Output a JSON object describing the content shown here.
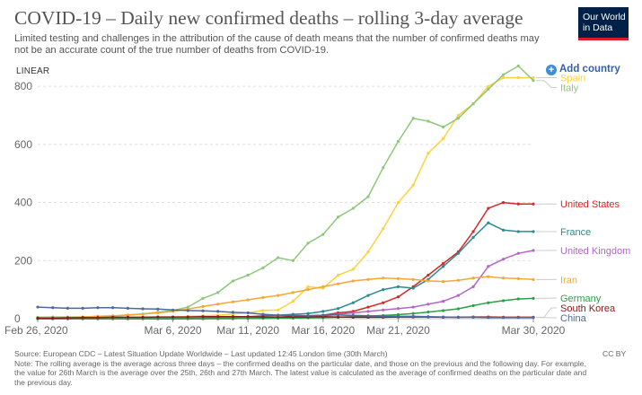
{
  "header": {
    "title": "COVID-19 – Daily new confirmed deaths – rolling 3-day average",
    "subtitle": "Limited testing and challenges in the attribution of the cause of death means that the number of confirmed deaths may not be an accurate count of the true number of deaths from COVID-19."
  },
  "logo": {
    "line1": "Our World",
    "line2": "in Data",
    "bg": "#002147",
    "accent": "#dd1a27"
  },
  "controls": {
    "scale_label": "LINEAR",
    "add_country_label": "Add country",
    "add_icon": "plus-circle-icon"
  },
  "footer": {
    "source": "Source: European CDC – Latest Situation Update Worldwide – Last updated 12:45 London time (30th March)",
    "note": "Note: The rolling average is the average across three days – the confirmed deaths on the particular date, and those on the previous and the following day. For example, the value for 26th March is the average over the 25th, 26th and 27th March. The latest value is calculated as the average of confirmed deaths on the particular date and the previous day.",
    "license": "CC BY"
  },
  "chart_data": {
    "type": "line",
    "ylim": [
      0,
      850
    ],
    "yticks": [
      "0",
      "200",
      "400",
      "600",
      "800"
    ],
    "ytick_values": [
      0,
      200,
      400,
      600,
      800
    ],
    "xticks": [
      "Feb 26, 2020",
      "Mar 6, 2020",
      "Mar 11, 2020",
      "Mar 16, 2020",
      "Mar 21, 2020",
      "Mar 30, 2020"
    ],
    "xtick_index": [
      0,
      9,
      14,
      19,
      24,
      33
    ],
    "x": [
      "Feb 26",
      "Feb 27",
      "Feb 28",
      "Feb 29",
      "Mar 1",
      "Mar 2",
      "Mar 3",
      "Mar 4",
      "Mar 5",
      "Mar 6",
      "Mar 7",
      "Mar 8",
      "Mar 9",
      "Mar 10",
      "Mar 11",
      "Mar 12",
      "Mar 13",
      "Mar 14",
      "Mar 15",
      "Mar 16",
      "Mar 17",
      "Mar 18",
      "Mar 19",
      "Mar 20",
      "Mar 21",
      "Mar 22",
      "Mar 23",
      "Mar 24",
      "Mar 25",
      "Mar 26",
      "Mar 27",
      "Mar 28",
      "Mar 29",
      "Mar 30"
    ],
    "grid": true,
    "legend": "right-end labels",
    "series": [
      {
        "name": "Spain",
        "color": "#fcd23f",
        "values": [
          0,
          0,
          0,
          0,
          0,
          0,
          1,
          2,
          4,
          5,
          8,
          10,
          12,
          16,
          20,
          28,
          30,
          60,
          110,
          105,
          150,
          170,
          230,
          310,
          400,
          460,
          570,
          620,
          700,
          740,
          800,
          830,
          830,
          830
        ]
      },
      {
        "name": "Italy",
        "color": "#8fc77a",
        "values": [
          5,
          6,
          6,
          6,
          8,
          9,
          12,
          16,
          22,
          28,
          40,
          70,
          90,
          130,
          150,
          175,
          210,
          200,
          260,
          290,
          350,
          380,
          420,
          520,
          610,
          690,
          680,
          660,
          690,
          740,
          790,
          840,
          870,
          820
        ]
      },
      {
        "name": "United States",
        "color": "#d62728",
        "values": [
          0,
          0,
          0,
          0,
          0,
          0,
          0,
          0,
          0,
          0,
          0,
          0,
          0,
          0,
          2,
          3,
          5,
          8,
          10,
          12,
          20,
          25,
          40,
          55,
          75,
          110,
          150,
          190,
          230,
          300,
          380,
          400,
          395,
          395
        ]
      },
      {
        "name": "France",
        "color": "#2a8c8c",
        "values": [
          0,
          0,
          0,
          0,
          0,
          0,
          0,
          0,
          0,
          0,
          1,
          2,
          3,
          5,
          7,
          10,
          12,
          15,
          18,
          25,
          35,
          55,
          80,
          100,
          110,
          105,
          135,
          180,
          225,
          280,
          330,
          305,
          300,
          300
        ]
      },
      {
        "name": "United Kingdom",
        "color": "#b364c7",
        "values": [
          0,
          0,
          0,
          0,
          0,
          0,
          0,
          0,
          0,
          0,
          0,
          1,
          1,
          2,
          2,
          3,
          4,
          5,
          8,
          10,
          15,
          20,
          25,
          30,
          35,
          40,
          50,
          60,
          80,
          110,
          180,
          205,
          225,
          235
        ]
      },
      {
        "name": "Iran",
        "color": "#f5a738",
        "values": [
          2,
          3,
          4,
          6,
          8,
          10,
          13,
          16,
          20,
          25,
          33,
          42,
          50,
          58,
          65,
          73,
          80,
          90,
          100,
          110,
          120,
          130,
          135,
          140,
          138,
          135,
          130,
          128,
          132,
          140,
          145,
          140,
          138,
          135
        ]
      },
      {
        "name": "Germany",
        "color": "#2f9e44",
        "values": [
          0,
          0,
          0,
          0,
          0,
          0,
          0,
          0,
          0,
          0,
          0,
          0,
          1,
          1,
          1,
          1,
          2,
          2,
          3,
          4,
          5,
          7,
          9,
          11,
          14,
          18,
          23,
          28,
          34,
          45,
          55,
          62,
          68,
          70
        ]
      },
      {
        "name": "South Korea",
        "color": "#8c1a1a",
        "values": [
          2,
          2,
          3,
          4,
          4,
          5,
          5,
          5,
          6,
          6,
          6,
          7,
          7,
          7,
          7,
          6,
          6,
          6,
          6,
          7,
          6,
          5,
          5,
          5,
          6,
          6,
          6,
          5,
          5,
          6,
          6,
          5,
          5,
          5
        ]
      },
      {
        "name": "China",
        "color": "#4c6a9c",
        "values": [
          40,
          38,
          36,
          36,
          38,
          38,
          36,
          34,
          33,
          30,
          28,
          27,
          25,
          22,
          20,
          15,
          12,
          11,
          10,
          12,
          13,
          11,
          10,
          8,
          8,
          8,
          7,
          6,
          5,
          5,
          4,
          4,
          4,
          4
        ]
      }
    ]
  }
}
